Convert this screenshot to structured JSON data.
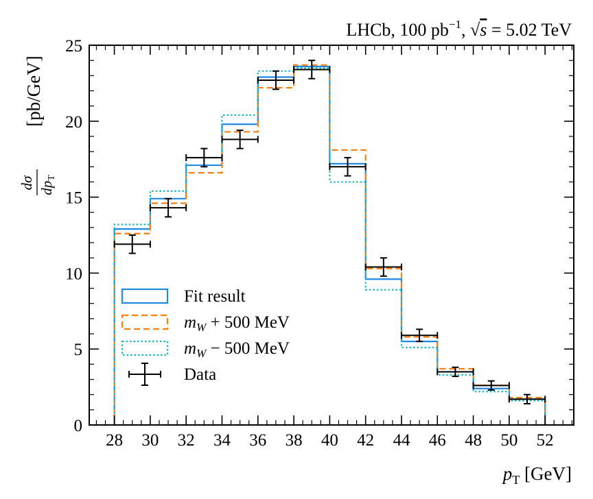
{
  "chart_data": {
    "type": "step-histogram",
    "title_text": "LHCb, 100 pb",
    "title_sup": "−1",
    "title_rest": ", ",
    "title_sqrt": "√",
    "title_s": "s",
    "title_energy": " = 5.02 TeV",
    "xlabel_var": "p",
    "xlabel_sub": "T",
    "xlabel_unit": " [GeV]",
    "ylabel_frac_num": "dσ",
    "ylabel_frac_den": "dp",
    "ylabel_frac_den_sub": "T",
    "ylabel_unit": "[pb/GeV]",
    "xlim": [
      26.6,
      53.6
    ],
    "ylim": [
      0,
      25
    ],
    "xticks": [
      28,
      30,
      32,
      34,
      36,
      38,
      40,
      42,
      44,
      46,
      48,
      50,
      52
    ],
    "xtick_labels": [
      "28",
      "30",
      "32",
      "34",
      "36",
      "38",
      "40",
      "42",
      "44",
      "46",
      "48",
      "50",
      "52"
    ],
    "yticks": [
      0,
      5,
      10,
      15,
      20,
      25
    ],
    "ytick_labels": [
      "0",
      "5",
      "10",
      "15",
      "20",
      "25"
    ],
    "bin_edges": [
      28,
      30,
      32,
      34,
      36,
      38,
      40,
      42,
      44,
      46,
      48,
      50,
      52
    ],
    "series": [
      {
        "name": "Fit result",
        "style": "solid",
        "color": "#1f88e5",
        "values": [
          12.9,
          14.9,
          17.1,
          19.8,
          22.9,
          23.6,
          17.2,
          9.6,
          5.5,
          3.5,
          2.4,
          1.7
        ]
      },
      {
        "name": "m_W + 500 MeV",
        "style": "dashed",
        "color": "#ff7f0e",
        "values": [
          12.6,
          14.6,
          16.6,
          19.3,
          22.2,
          23.7,
          18.1,
          10.3,
          5.8,
          3.7,
          2.6,
          1.8
        ]
      },
      {
        "name": "m_W − 500 MeV",
        "style": "dotted",
        "color": "#17b8c0",
        "values": [
          13.2,
          15.4,
          17.6,
          20.4,
          23.3,
          23.5,
          16.0,
          8.9,
          5.1,
          3.3,
          2.2,
          1.6
        ]
      }
    ],
    "data_points": {
      "name": "Data",
      "x": [
        29,
        31,
        33,
        35,
        37,
        39,
        41,
        43,
        45,
        47,
        49,
        51
      ],
      "y": [
        11.9,
        14.3,
        17.6,
        18.8,
        22.7,
        23.4,
        17.0,
        10.4,
        5.9,
        3.5,
        2.6,
        1.7
      ],
      "yerr": [
        0.6,
        0.6,
        0.6,
        0.6,
        0.6,
        0.6,
        0.6,
        0.6,
        0.4,
        0.3,
        0.3,
        0.3
      ],
      "xerr": 1
    },
    "legend": {
      "position": "center-left",
      "entries": [
        {
          "label": "Fit result",
          "marker": "box-solid",
          "color": "#1f88e5"
        },
        {
          "label_var": "m",
          "label_sub": "W",
          "label_rest": " + 500 MeV",
          "marker": "box-dashed",
          "color": "#ff7f0e"
        },
        {
          "label_var": "m",
          "label_sub": "W",
          "label_rest": " − 500 MeV",
          "marker": "box-dotted",
          "color": "#17b8c0"
        },
        {
          "label": "Data",
          "marker": "errorbar-cross",
          "color": "#000000"
        }
      ]
    }
  }
}
